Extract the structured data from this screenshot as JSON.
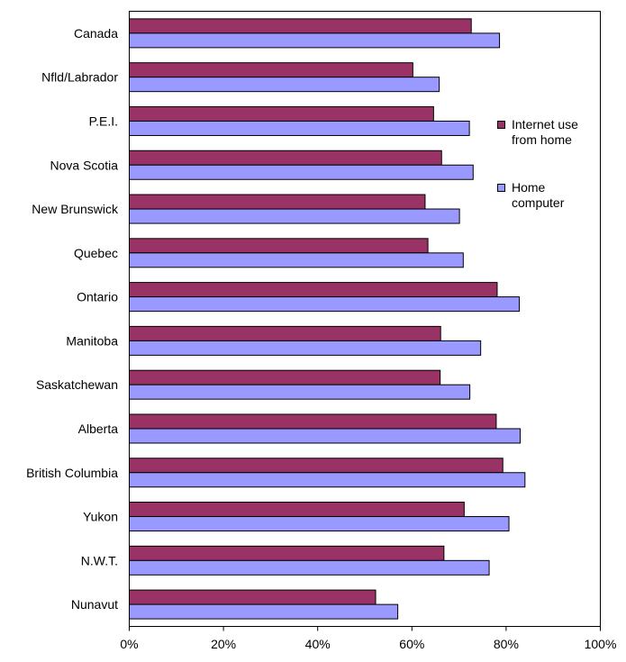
{
  "chart_data": {
    "type": "bar",
    "orientation": "horizontal",
    "categories": [
      "Canada",
      "Nfld/Labrador",
      "P.E.I.",
      "Nova Scotia",
      "New Brunswick",
      "Quebec",
      "Ontario",
      "Manitoba",
      "Saskatchewan",
      "Alberta",
      "British Columbia",
      "Yukon",
      "N.W.T.",
      "Nunavut"
    ],
    "series": [
      {
        "name": "Internet use\nfrom home",
        "color": "#993366",
        "values": [
          72.6,
          60.2,
          64.6,
          66.3,
          62.8,
          63.4,
          78.1,
          66.1,
          66.0,
          77.9,
          79.3,
          71.1,
          66.8,
          52.3
        ]
      },
      {
        "name": "Home\ncomputer",
        "color": "#9999ff",
        "values": [
          78.6,
          65.8,
          72.2,
          73.0,
          70.1,
          70.9,
          82.8,
          74.6,
          72.3,
          83.0,
          84.0,
          80.6,
          76.4,
          57.0
        ]
      }
    ],
    "xlim": [
      0,
      100
    ],
    "x_ticks": [
      "0%",
      "20%",
      "40%",
      "60%",
      "80%",
      "100%"
    ],
    "title": "",
    "xlabel": "",
    "ylabel": "",
    "legend_position": "right",
    "grid": false
  }
}
